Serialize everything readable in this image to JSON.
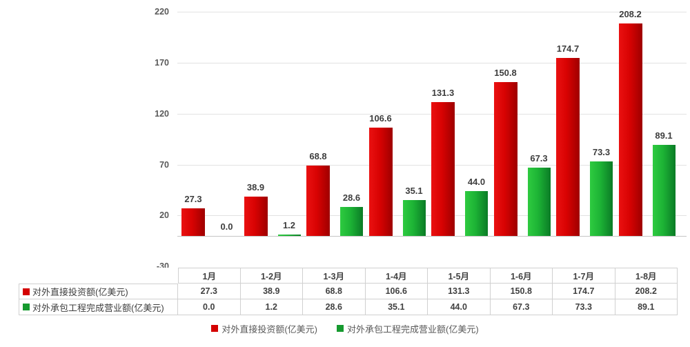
{
  "chart_data": {
    "type": "bar",
    "title": "",
    "categories": [
      "1月",
      "1-2月",
      "1-3月",
      "1-4月",
      "1-5月",
      "1-6月",
      "1-7月",
      "1-8月"
    ],
    "series": [
      {
        "name": "对外直接投资额(亿美元)",
        "values": [
          27.3,
          38.9,
          68.8,
          106.6,
          131.3,
          150.8,
          174.7,
          208.2
        ],
        "color": "#d40000",
        "gradient": [
          "#ea1111",
          "#d80202",
          "#9e0000"
        ]
      },
      {
        "name": "对外承包工程完成营业额(亿美元)",
        "values": [
          0.0,
          1.2,
          28.6,
          35.1,
          44.0,
          67.3,
          73.3,
          89.1
        ],
        "color": "#169a2f",
        "gradient": [
          "#2ecb40",
          "#1db335",
          "#0a7b26"
        ]
      }
    ],
    "y_ticks": [
      220,
      170,
      120,
      70,
      20,
      -30
    ],
    "ylim": [
      -30,
      220
    ],
    "value_decimals": 1,
    "grid": true,
    "has_data_table": true,
    "legend_position": "bottom",
    "xlabel": "",
    "ylabel": ""
  },
  "legend": {
    "items": [
      {
        "label": "对外直接投资额(亿美元)",
        "color": "#d40000"
      },
      {
        "label": "对外承包工程完成营业额(亿美元)",
        "color": "#169a2f"
      }
    ]
  },
  "colors": {
    "grid_line": "#e2e2e2",
    "axis_line": "#c4c4c4",
    "table_border": "#d0d0d0",
    "tick_label": "#595959",
    "data_label": "#3d3d3d",
    "table_text": "#404040",
    "legend_text": "#595959"
  }
}
